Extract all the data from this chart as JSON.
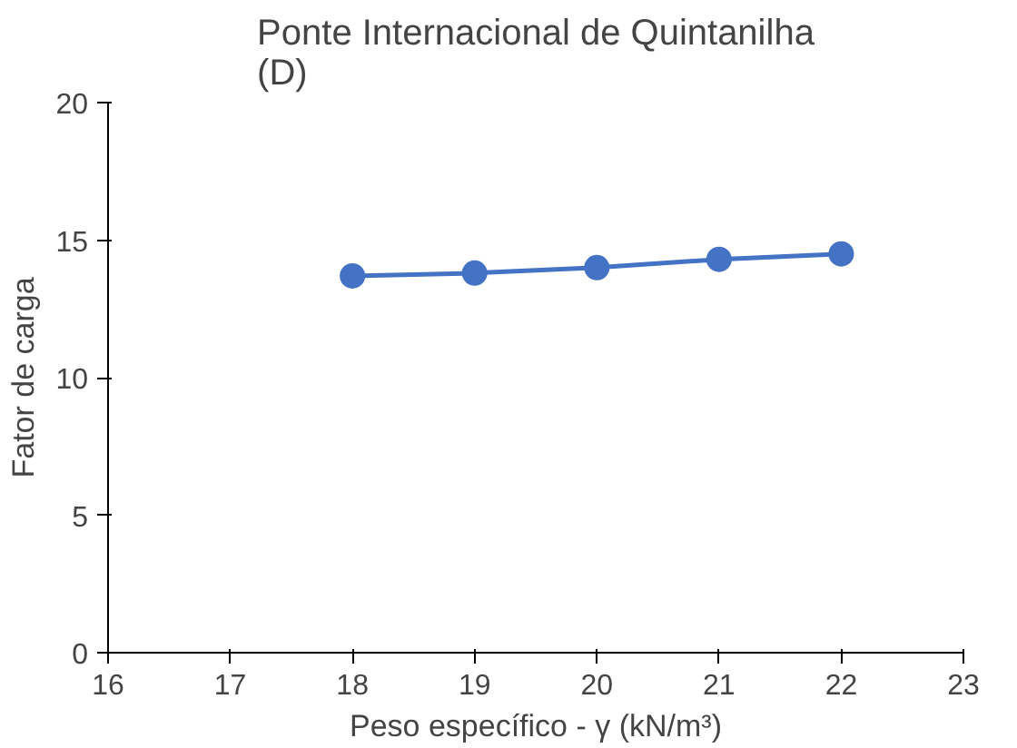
{
  "chart_data": {
    "type": "line",
    "title": "Ponte Internacional de Quintanilha (D)",
    "xlabel": "Peso específico - γ (kN/m³)",
    "ylabel": "Fator de carga",
    "x": [
      18,
      19,
      20,
      21,
      22
    ],
    "series": [
      {
        "color": "#4472c4",
        "values": [
          13.7,
          13.8,
          14.0,
          14.3,
          14.5
        ]
      }
    ],
    "xlim": [
      16,
      23
    ],
    "xticks": [
      16,
      17,
      18,
      19,
      20,
      21,
      22,
      23
    ],
    "ylim": [
      0,
      20
    ],
    "yticks": [
      0,
      5,
      10,
      15,
      20
    ],
    "marker": "circle",
    "grid": false
  }
}
